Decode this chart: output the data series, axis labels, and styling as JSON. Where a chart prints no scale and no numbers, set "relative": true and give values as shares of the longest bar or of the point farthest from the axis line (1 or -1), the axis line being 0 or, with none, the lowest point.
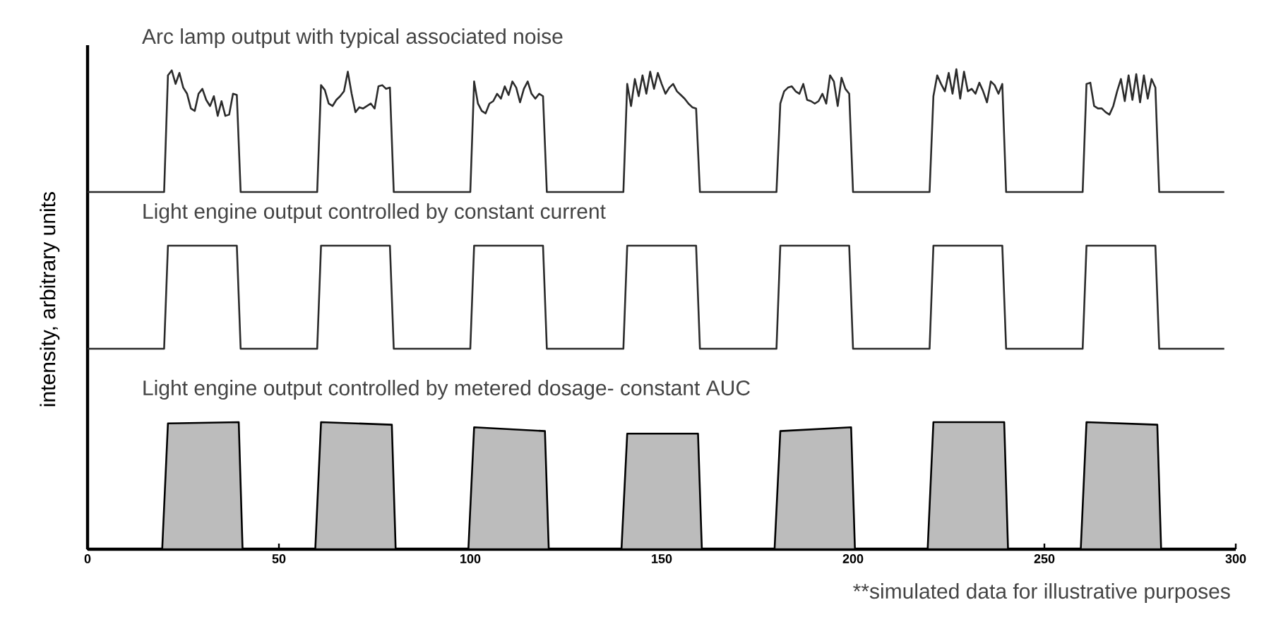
{
  "chart_data": [
    {
      "type": "line",
      "title": "Arc lamp output with typical associated noise",
      "relative": true,
      "xlim": [
        0,
        300
      ],
      "tick_labels": false,
      "color": "#2b2b2b",
      "x": [
        0,
        20,
        21,
        22,
        23,
        24,
        25,
        26,
        27,
        28,
        29,
        30,
        31,
        32,
        33,
        34,
        35,
        36,
        37,
        38,
        39,
        40,
        60,
        61,
        62,
        63,
        64,
        65,
        66,
        67,
        68,
        69,
        70,
        71,
        72,
        73,
        74,
        75,
        76,
        77,
        78,
        79,
        80,
        100,
        101,
        102,
        103,
        104,
        105,
        106,
        107,
        108,
        109,
        110,
        111,
        112,
        113,
        114,
        115,
        116,
        117,
        118,
        119,
        120,
        140,
        141,
        142,
        143,
        144,
        145,
        146,
        147,
        148,
        149,
        150,
        151,
        152,
        153,
        154,
        155,
        156,
        157,
        158,
        159,
        160,
        180,
        181,
        182,
        183,
        184,
        185,
        186,
        187,
        188,
        189,
        190,
        191,
        192,
        193,
        194,
        195,
        196,
        197,
        198,
        199,
        200,
        220,
        221,
        222,
        223,
        224,
        225,
        226,
        227,
        228,
        229,
        230,
        231,
        232,
        233,
        234,
        235,
        236,
        237,
        238,
        239,
        240,
        260,
        261,
        262,
        263,
        264,
        265,
        266,
        267,
        268,
        269,
        270,
        271,
        272,
        273,
        274,
        275,
        276,
        277,
        278,
        279,
        280,
        297
      ],
      "values": [
        0,
        0,
        0.95,
        0.99,
        0.88,
        0.97,
        0.85,
        0.8,
        0.68,
        0.66,
        0.8,
        0.84,
        0.75,
        0.7,
        0.78,
        0.62,
        0.74,
        0.62,
        0.63,
        0.8,
        0.79,
        0,
        0,
        0.87,
        0.83,
        0.72,
        0.7,
        0.75,
        0.78,
        0.82,
        0.98,
        0.8,
        0.65,
        0.69,
        0.68,
        0.7,
        0.72,
        0.68,
        0.86,
        0.87,
        0.84,
        0.85,
        0,
        0,
        0.9,
        0.72,
        0.66,
        0.64,
        0.72,
        0.74,
        0.8,
        0.76,
        0.86,
        0.79,
        0.9,
        0.85,
        0.73,
        0.84,
        0.9,
        0.8,
        0.76,
        0.8,
        0.78,
        0,
        0,
        0.88,
        0.7,
        0.92,
        0.78,
        0.95,
        0.8,
        0.98,
        0.84,
        0.97,
        0.88,
        0.8,
        0.85,
        0.88,
        0.82,
        0.79,
        0.76,
        0.72,
        0.69,
        0.68,
        0,
        0,
        0.72,
        0.82,
        0.85,
        0.86,
        0.82,
        0.8,
        0.88,
        0.75,
        0.74,
        0.72,
        0.74,
        0.8,
        0.72,
        0.95,
        0.9,
        0.7,
        0.93,
        0.84,
        0.8,
        0,
        0,
        0.78,
        0.95,
        0.88,
        0.82,
        0.97,
        0.8,
        1.0,
        0.76,
        0.98,
        0.82,
        0.84,
        0.8,
        0.89,
        0.82,
        0.73,
        0.9,
        0.87,
        0.8,
        0.88,
        0,
        0,
        0.88,
        0.89,
        0.7,
        0.68,
        0.68,
        0.65,
        0.63,
        0.7,
        0.82,
        0.92,
        0.74,
        0.95,
        0.75,
        0.96,
        0.73,
        0.95,
        0.76,
        0.92,
        0.85,
        0,
        0
      ]
    },
    {
      "type": "line",
      "title": "Light engine output controlled by constant current",
      "ylabel": "intensity, arbitrary units",
      "relative": true,
      "xlim": [
        0,
        300
      ],
      "tick_labels": false,
      "color": "#2b2b2b",
      "x": [
        0,
        20,
        21,
        39,
        40,
        60,
        61,
        79,
        80,
        100,
        101,
        119,
        120,
        140,
        141,
        159,
        160,
        180,
        181,
        199,
        200,
        220,
        221,
        239,
        240,
        260,
        261,
        279,
        280,
        297
      ],
      "values": [
        0,
        0,
        1,
        1,
        0,
        0,
        1,
        1,
        0,
        0,
        1,
        1,
        0,
        0,
        1,
        1,
        0,
        0,
        1,
        1,
        0,
        0,
        1,
        1,
        0,
        0,
        1,
        1,
        0,
        0
      ]
    },
    {
      "type": "area",
      "title": "Light engine output controlled by metered dosage- constant AUC",
      "relative": true,
      "xlim": [
        0,
        300
      ],
      "xticks": [
        0,
        50,
        100,
        150,
        200,
        250,
        300
      ],
      "tick_labels": "x",
      "color": "#bcbcbc",
      "annotations": [
        "**simulated data for illustrative purposes"
      ],
      "x": [
        0,
        19.5,
        21,
        39.5,
        40.5,
        59.5,
        61,
        79.5,
        80.5,
        99.5,
        101,
        119.5,
        120.5,
        139.5,
        141,
        159.5,
        160.5,
        179.5,
        181,
        199.5,
        200.5,
        219.5,
        221,
        239.5,
        240.5,
        259.5,
        261,
        279.5,
        280.5,
        297
      ],
      "values": [
        0,
        0,
        0.99,
        1.0,
        0,
        0,
        1.0,
        0.98,
        0,
        0,
        0.96,
        0.93,
        0,
        0,
        0.91,
        0.91,
        0,
        0,
        0.93,
        0.96,
        0,
        0,
        1.0,
        1.0,
        0,
        0,
        1.0,
        0.98,
        0,
        0
      ]
    }
  ]
}
